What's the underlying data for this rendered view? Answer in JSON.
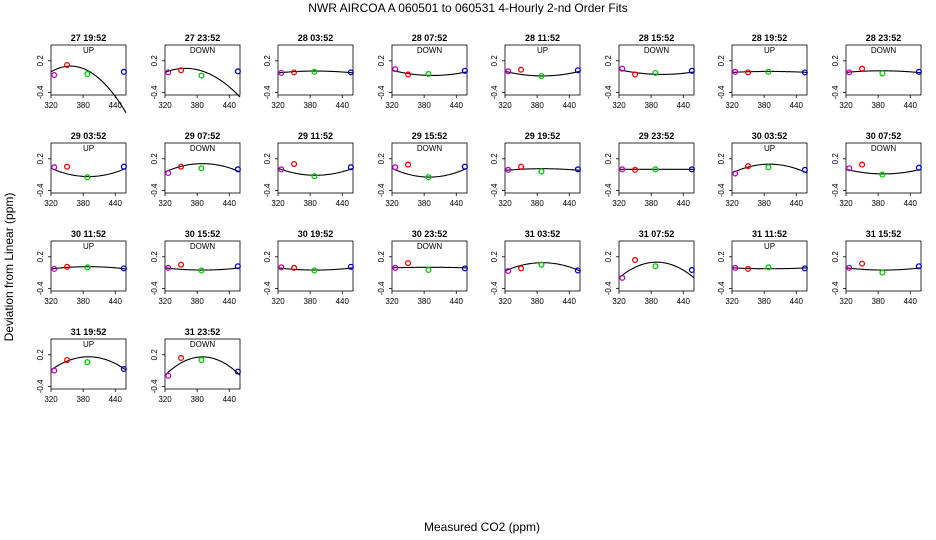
{
  "figure": {
    "title": "NWR   AIRCOA A    060501 to 060531   4-Hourly 2-nd Order Fits",
    "xlabel": "Measured CO2 (ppm)",
    "ylabel": "Deviation from Linear (ppm)"
  },
  "axes": {
    "xlim": [
      320,
      460
    ],
    "ylim": [
      -0.45,
      0.5
    ],
    "xticks": [
      320,
      380,
      440
    ],
    "yticks": [
      0.2,
      -0.4
    ],
    "xtick_labels": [
      "320",
      "380",
      "440"
    ],
    "ytick_labels": [
      "0.2",
      "-0.4"
    ]
  },
  "colors": {
    "standard_1": "#c000c0",
    "standard_2": "#ff0000",
    "standard_3": "#00cc00",
    "standard_4": "#0000cc",
    "fit_line": "#000000"
  },
  "chart_data": {
    "type": "scatter",
    "x": [
      326,
      350,
      388,
      456
    ],
    "panels": [
      {
        "title": "27 19:52",
        "subtitle": "UP",
        "y": [
          -0.07,
          0.12,
          -0.05,
          -0.01
        ],
        "fit": [
          -0.01,
          0.006,
          -8.25e-05
        ]
      },
      {
        "title": "27 23:52",
        "subtitle": "DOWN",
        "y": [
          -0.02,
          0.02,
          -0.08,
          0.0
        ],
        "fit": [
          -0.02,
          0.004,
          -5.25e-05
        ]
      },
      {
        "title": "28 03:52",
        "subtitle": "",
        "y": [
          -0.03,
          -0.02,
          -0.01,
          -0.02
        ],
        "fit": [
          -0.03,
          0.001,
          -7.14e-06
        ]
      },
      {
        "title": "28 07:52",
        "subtitle": "DOWN",
        "y": [
          0.04,
          -0.06,
          -0.05,
          0.01
        ],
        "fit": [
          0.02,
          -0.0026,
          1.71e-05
        ]
      },
      {
        "title": "28 11:52",
        "subtitle": "UP",
        "y": [
          0.0,
          0.03,
          -0.09,
          0.02
        ],
        "fit": [
          0.0,
          -0.0025,
          1.79e-05
        ]
      },
      {
        "title": "28 15:52",
        "subtitle": "DOWN",
        "y": [
          0.05,
          -0.06,
          -0.03,
          0.01
        ],
        "fit": [
          0.03,
          -0.0022,
          1.36e-05
        ]
      },
      {
        "title": "28 19:52",
        "subtitle": "UP",
        "y": [
          -0.01,
          -0.02,
          -0.01,
          -0.02
        ],
        "fit": [
          -0.02,
          0.0005,
          -3.57e-06
        ]
      },
      {
        "title": "28 23:52",
        "subtitle": "DOWN",
        "y": [
          -0.02,
          0.05,
          -0.04,
          -0.01
        ],
        "fit": [
          -0.02,
          0.0009,
          -6.79e-06
        ]
      },
      {
        "title": "29 03:52",
        "subtitle": "UP",
        "y": [
          0.04,
          0.05,
          -0.15,
          0.05
        ],
        "fit": [
          0.02,
          -0.0045,
          3.21e-05
        ]
      },
      {
        "title": "29 07:52",
        "subtitle": "DOWN",
        "y": [
          -0.07,
          0.05,
          0.02,
          0.0
        ],
        "fit": [
          -0.05,
          0.0045,
          -3.21e-05
        ]
      },
      {
        "title": "29 11:52",
        "subtitle": "",
        "y": [
          0.0,
          0.1,
          -0.13,
          0.04
        ],
        "fit": [
          0.02,
          -0.0038,
          2.71e-05
        ]
      },
      {
        "title": "29 15:52",
        "subtitle": "DOWN",
        "y": [
          0.04,
          0.09,
          -0.15,
          0.05
        ],
        "fit": [
          0.02,
          -0.0048,
          3.43e-05
        ]
      },
      {
        "title": "29 19:52",
        "subtitle": "",
        "y": [
          -0.01,
          0.05,
          -0.04,
          0.0
        ],
        "fit": [
          -0.02,
          0.0009,
          -6.43e-06
        ]
      },
      {
        "title": "29 23:52",
        "subtitle": "",
        "y": [
          0.0,
          -0.01,
          0.0,
          0.0
        ],
        "fit": [
          0.0,
          0.0,
          0.0
        ]
      },
      {
        "title": "30 03:52",
        "subtitle": "UP",
        "y": [
          -0.08,
          0.06,
          0.04,
          -0.01
        ],
        "fit": [
          -0.07,
          0.0048,
          -3.43e-05
        ]
      },
      {
        "title": "30 07:52",
        "subtitle": "DOWN",
        "y": [
          0.02,
          0.09,
          -0.1,
          0.03
        ],
        "fit": [
          0.0,
          -0.0025,
          1.79e-05
        ]
      },
      {
        "title": "30 11:52",
        "subtitle": "UP",
        "y": [
          -0.03,
          0.01,
          0.0,
          -0.02
        ],
        "fit": [
          -0.03,
          0.0012,
          -8.57e-06
        ]
      },
      {
        "title": "30 15:52",
        "subtitle": "DOWN",
        "y": [
          -0.01,
          0.05,
          -0.06,
          0.02
        ],
        "fit": [
          -0.01,
          -0.0012,
          8.57e-06
        ]
      },
      {
        "title": "30 19:52",
        "subtitle": "",
        "y": [
          0.0,
          -0.01,
          -0.06,
          0.01
        ],
        "fit": [
          -0.01,
          -0.0012,
          8.57e-06
        ]
      },
      {
        "title": "30 23:52",
        "subtitle": "DOWN",
        "y": [
          -0.01,
          0.08,
          -0.05,
          -0.02
        ],
        "fit": [
          -0.01,
          0.0003,
          -2.14e-06
        ]
      },
      {
        "title": "31 03:52",
        "subtitle": "",
        "y": [
          -0.07,
          -0.02,
          0.05,
          -0.06
        ],
        "fit": [
          -0.07,
          0.0045,
          -3.21e-05
        ]
      },
      {
        "title": "31 07:52",
        "subtitle": "",
        "y": [
          -0.2,
          0.14,
          0.02,
          -0.05
        ],
        "fit": [
          -0.2,
          0.0085,
          -6.07e-05
        ]
      },
      {
        "title": "31 11:52",
        "subtitle": "UP",
        "y": [
          -0.01,
          -0.03,
          0.0,
          -0.02
        ],
        "fit": [
          -0.01,
          -0.0005,
          3.57e-06
        ]
      },
      {
        "title": "31 15:52",
        "subtitle": "",
        "y": [
          -0.01,
          0.07,
          -0.1,
          0.02
        ],
        "fit": [
          -0.01,
          -0.0012,
          8.57e-06
        ]
      },
      {
        "title": "31 19:52",
        "subtitle": "UP",
        "y": [
          -0.1,
          0.1,
          0.06,
          -0.07
        ],
        "fit": [
          -0.09,
          0.0072,
          -5.14e-05
        ]
      },
      {
        "title": "31 23:52",
        "subtitle": "DOWN",
        "y": [
          -0.2,
          0.14,
          0.1,
          -0.12
        ],
        "fit": [
          -0.19,
          0.01,
          -7.14e-05
        ]
      }
    ]
  }
}
